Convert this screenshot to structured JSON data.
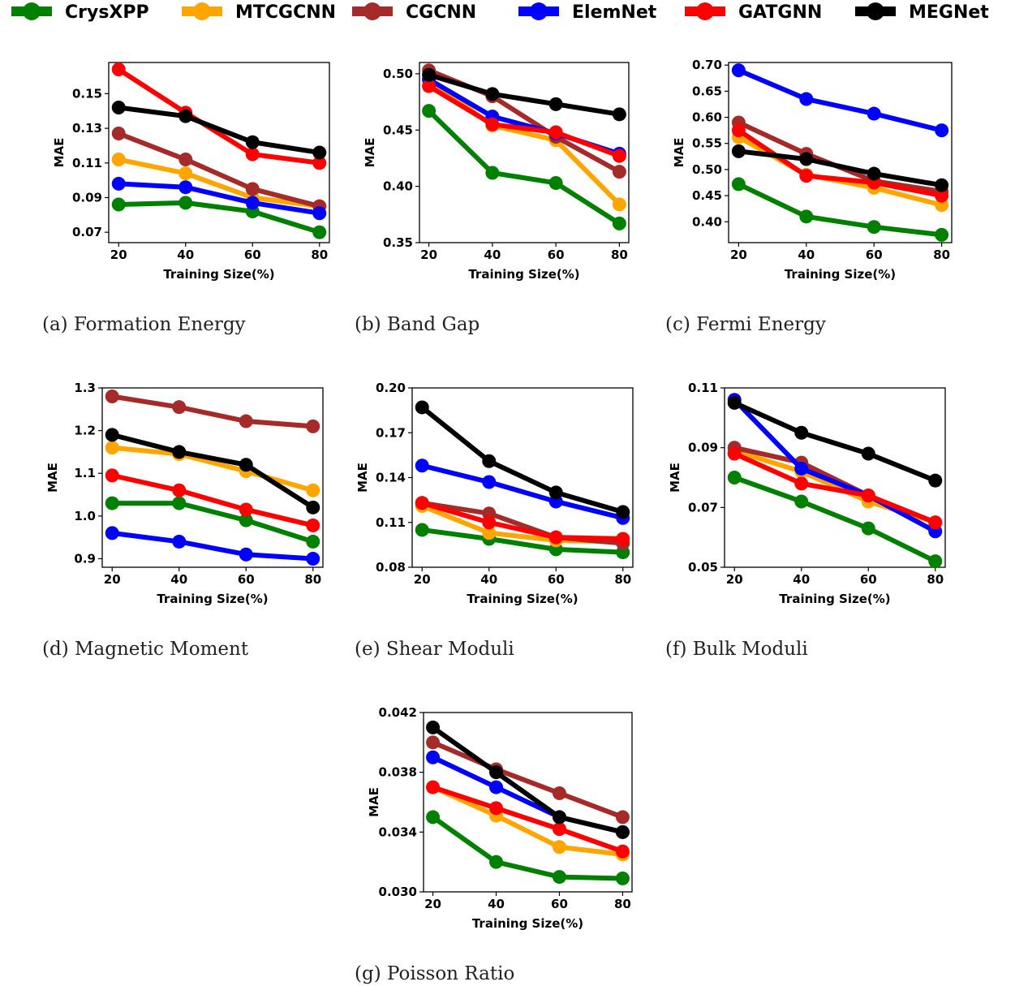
{
  "legend": [
    {
      "name": "CrysXPP",
      "color": "#008000"
    },
    {
      "name": "MTCGCNN",
      "color": "#FFA500"
    },
    {
      "name": "CGCNN",
      "color": "#A52A2A"
    },
    {
      "name": "ElemNet",
      "color": "#0000FF"
    },
    {
      "name": "GATGNN",
      "color": "#FF0000"
    },
    {
      "name": "MEGNet",
      "color": "#000000"
    }
  ],
  "chart_data": [
    {
      "type": "line",
      "caption": "(a) Formation Energy",
      "xlabel": "Training Size(%)",
      "ylabel": "MAE",
      "x": [
        20,
        40,
        60,
        80
      ],
      "xticks": [
        "20",
        "40",
        "60",
        "80"
      ],
      "ylim": [
        0.064,
        0.168
      ],
      "yticks": [
        0.07,
        0.09,
        0.11,
        0.13,
        0.15
      ],
      "ytick_labels": [
        "0.07",
        "0.09",
        "0.11",
        "0.13",
        "0.15"
      ],
      "series": [
        {
          "name": "CrysXPP",
          "values": [
            0.086,
            0.087,
            0.082,
            0.07
          ]
        },
        {
          "name": "MTCGCNN",
          "values": [
            0.112,
            0.104,
            0.09,
            0.085
          ]
        },
        {
          "name": "CGCNN",
          "values": [
            0.127,
            0.112,
            0.095,
            0.085
          ]
        },
        {
          "name": "ElemNet",
          "values": [
            0.098,
            0.096,
            0.087,
            0.081
          ]
        },
        {
          "name": "GATGNN",
          "values": [
            0.164,
            0.139,
            0.115,
            0.11
          ]
        },
        {
          "name": "MEGNet",
          "values": [
            0.142,
            0.137,
            0.122,
            0.116
          ]
        }
      ]
    },
    {
      "type": "line",
      "caption": "(b) Band Gap",
      "xlabel": "Training Size(%)",
      "ylabel": "MAE",
      "x": [
        20,
        40,
        60,
        80
      ],
      "xticks": [
        "20",
        "40",
        "60",
        "80"
      ],
      "ylim": [
        0.35,
        0.51
      ],
      "yticks": [
        0.35,
        0.4,
        0.45,
        0.5
      ],
      "ytick_labels": [
        "0.35",
        "0.40",
        "0.45",
        "0.50"
      ],
      "series": [
        {
          "name": "CrysXPP",
          "values": [
            0.467,
            0.412,
            0.403,
            0.367
          ]
        },
        {
          "name": "MTCGCNN",
          "values": [
            0.495,
            0.454,
            0.441,
            0.384
          ]
        },
        {
          "name": "CGCNN",
          "values": [
            0.503,
            0.48,
            0.444,
            0.413
          ]
        },
        {
          "name": "ElemNet",
          "values": [
            0.495,
            0.462,
            0.447,
            0.429
          ]
        },
        {
          "name": "GATGNN",
          "values": [
            0.489,
            0.455,
            0.448,
            0.427
          ]
        },
        {
          "name": "MEGNet",
          "values": [
            0.499,
            0.482,
            0.473,
            0.464
          ]
        }
      ]
    },
    {
      "type": "line",
      "caption": "(c) Fermi Energy",
      "xlabel": "Training Size(%)",
      "ylabel": "MAE",
      "x": [
        20,
        40,
        60,
        80
      ],
      "xticks": [
        "20",
        "40",
        "60",
        "80"
      ],
      "ylim": [
        0.36,
        0.705
      ],
      "yticks": [
        0.4,
        0.45,
        0.5,
        0.55,
        0.6,
        0.65,
        0.7
      ],
      "ytick_labels": [
        "0.40",
        "0.45",
        "0.50",
        "0.55",
        "0.60",
        "0.65",
        "0.70"
      ],
      "series": [
        {
          "name": "CrysXPP",
          "values": [
            0.472,
            0.41,
            0.39,
            0.375
          ]
        },
        {
          "name": "MTCGCNN",
          "values": [
            0.562,
            0.49,
            0.465,
            0.432
          ]
        },
        {
          "name": "CGCNN",
          "values": [
            0.59,
            0.53,
            0.478,
            0.458
          ]
        },
        {
          "name": "ElemNet",
          "values": [
            0.69,
            0.635,
            0.607,
            0.575
          ]
        },
        {
          "name": "GATGNN",
          "values": [
            0.575,
            0.488,
            0.475,
            0.45
          ]
        },
        {
          "name": "MEGNet",
          "values": [
            0.535,
            0.52,
            0.492,
            0.47
          ]
        }
      ]
    },
    {
      "type": "line",
      "caption": "(d) Magnetic Moment",
      "xlabel": "Training Size(%)",
      "ylabel": "MAE",
      "x": [
        20,
        40,
        60,
        80
      ],
      "xticks": [
        "20",
        "40",
        "60",
        "80"
      ],
      "ylim": [
        0.88,
        1.3
      ],
      "yticks": [
        0.9,
        1.0,
        1.1,
        1.2,
        1.3
      ],
      "ytick_labels": [
        "0.9",
        "1.0",
        "1.1",
        "1.2",
        "1.3"
      ],
      "series": [
        {
          "name": "CrysXPP",
          "values": [
            1.03,
            1.03,
            0.99,
            0.94
          ]
        },
        {
          "name": "MTCGCNN",
          "values": [
            1.16,
            1.145,
            1.105,
            1.06
          ]
        },
        {
          "name": "CGCNN",
          "values": [
            1.28,
            1.255,
            1.222,
            1.21
          ]
        },
        {
          "name": "ElemNet",
          "values": [
            0.96,
            0.94,
            0.91,
            0.9
          ]
        },
        {
          "name": "GATGNN",
          "values": [
            1.095,
            1.06,
            1.015,
            0.978
          ]
        },
        {
          "name": "MEGNet",
          "values": [
            1.19,
            1.15,
            1.12,
            1.02
          ]
        }
      ]
    },
    {
      "type": "line",
      "caption": "(e) Shear Moduli",
      "xlabel": "Training Size(%)",
      "ylabel": "MAE",
      "x": [
        20,
        40,
        60,
        80
      ],
      "xticks": [
        "20",
        "40",
        "60",
        "80"
      ],
      "ylim": [
        0.08,
        0.2
      ],
      "yticks": [
        0.08,
        0.11,
        0.14,
        0.17,
        0.2
      ],
      "ytick_labels": [
        "0.08",
        "0.11",
        "0.14",
        "0.17",
        "0.20"
      ],
      "series": [
        {
          "name": "CrysXPP",
          "values": [
            0.105,
            0.099,
            0.092,
            0.09
          ]
        },
        {
          "name": "MTCGCNN",
          "values": [
            0.121,
            0.103,
            0.098,
            0.097
          ]
        },
        {
          "name": "CGCNN",
          "values": [
            0.123,
            0.116,
            0.1,
            0.096
          ]
        },
        {
          "name": "ElemNet",
          "values": [
            0.148,
            0.137,
            0.124,
            0.113
          ]
        },
        {
          "name": "GATGNN",
          "values": [
            0.123,
            0.11,
            0.1,
            0.099
          ]
        },
        {
          "name": "MEGNet",
          "values": [
            0.187,
            0.151,
            0.13,
            0.117
          ]
        }
      ]
    },
    {
      "type": "line",
      "caption": "(f) Bulk Moduli",
      "xlabel": "Training Size(%)",
      "ylabel": "MAE",
      "x": [
        20,
        40,
        60,
        80
      ],
      "xticks": [
        "20",
        "40",
        "60",
        "80"
      ],
      "ylim": [
        0.05,
        0.11
      ],
      "yticks": [
        0.05,
        0.07,
        0.09,
        0.11
      ],
      "ytick_labels": [
        "0.05",
        "0.07",
        "0.09",
        "0.11"
      ],
      "series": [
        {
          "name": "CrysXPP",
          "values": [
            0.08,
            0.072,
            0.063,
            0.052
          ]
        },
        {
          "name": "MTCGCNN",
          "values": [
            0.089,
            0.082,
            0.072,
            0.065
          ]
        },
        {
          "name": "CGCNN",
          "values": [
            0.09,
            0.085,
            0.074,
            0.065
          ]
        },
        {
          "name": "ElemNet",
          "values": [
            0.106,
            0.083,
            0.074,
            0.062
          ]
        },
        {
          "name": "GATGNN",
          "values": [
            0.088,
            0.078,
            0.074,
            0.065
          ]
        },
        {
          "name": "MEGNet",
          "values": [
            0.105,
            0.095,
            0.088,
            0.079
          ]
        }
      ]
    },
    {
      "type": "line",
      "caption": "(g) Poisson Ratio",
      "xlabel": "Training Size(%)",
      "ylabel": "MAE",
      "x": [
        20,
        40,
        60,
        80
      ],
      "xticks": [
        "20",
        "40",
        "60",
        "80"
      ],
      "ylim": [
        0.03,
        0.042
      ],
      "yticks": [
        0.03,
        0.034,
        0.038,
        0.042
      ],
      "ytick_labels": [
        "0.030",
        "0.034",
        "0.038",
        "0.042"
      ],
      "series": [
        {
          "name": "CrysXPP",
          "values": [
            0.035,
            0.032,
            0.031,
            0.0309
          ]
        },
        {
          "name": "MTCGCNN",
          "values": [
            0.037,
            0.0351,
            0.033,
            0.0325
          ]
        },
        {
          "name": "CGCNN",
          "values": [
            0.04,
            0.0382,
            0.0366,
            0.035
          ]
        },
        {
          "name": "ElemNet",
          "values": [
            0.039,
            0.037,
            0.035,
            0.034
          ]
        },
        {
          "name": "GATGNN",
          "values": [
            0.037,
            0.0356,
            0.0342,
            0.0327
          ]
        },
        {
          "name": "MEGNet",
          "values": [
            0.041,
            0.038,
            0.035,
            0.034
          ]
        }
      ]
    }
  ]
}
